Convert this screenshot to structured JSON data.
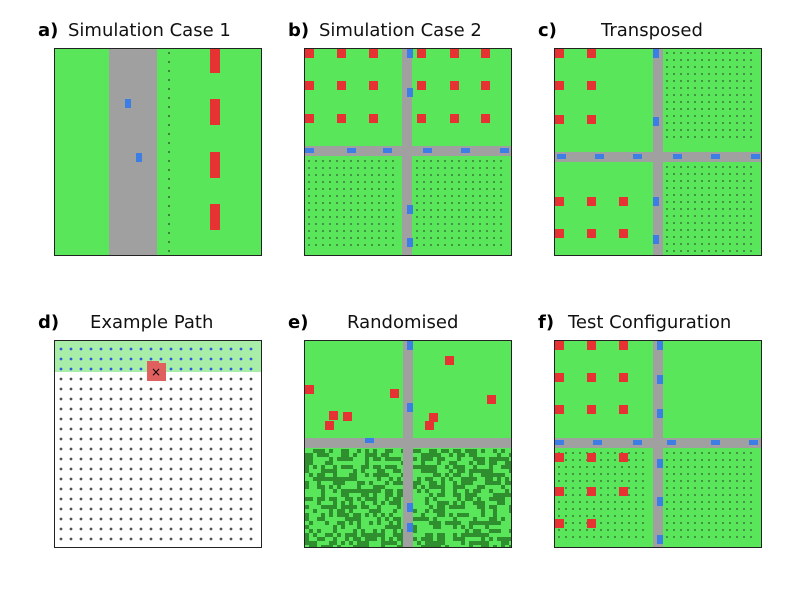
{
  "colors": {
    "grass": "#5ae65a",
    "road": "#a0a0a0",
    "building": "#e63232",
    "car": "#3c7de6",
    "dot": "#3a7a3a",
    "dark_grass": "#2f8f2f",
    "path_dot": "#505050",
    "visited_dot": "#2a5adf",
    "visited_band": "#a8eea8",
    "agent": "#e06060"
  },
  "panels": [
    {
      "id": "a",
      "label": "a)",
      "title": "Simulation Case 1"
    },
    {
      "id": "b",
      "label": "b)",
      "title": "Simulation Case 2"
    },
    {
      "id": "c",
      "label": "c)",
      "title": "Transposed"
    },
    {
      "id": "d",
      "label": "d)",
      "title": "Example Path",
      "agent_marker": "×"
    },
    {
      "id": "e",
      "label": "e)",
      "title": "Randomised"
    },
    {
      "id": "f",
      "label": "f)",
      "title": "Test Configuration"
    }
  ]
}
